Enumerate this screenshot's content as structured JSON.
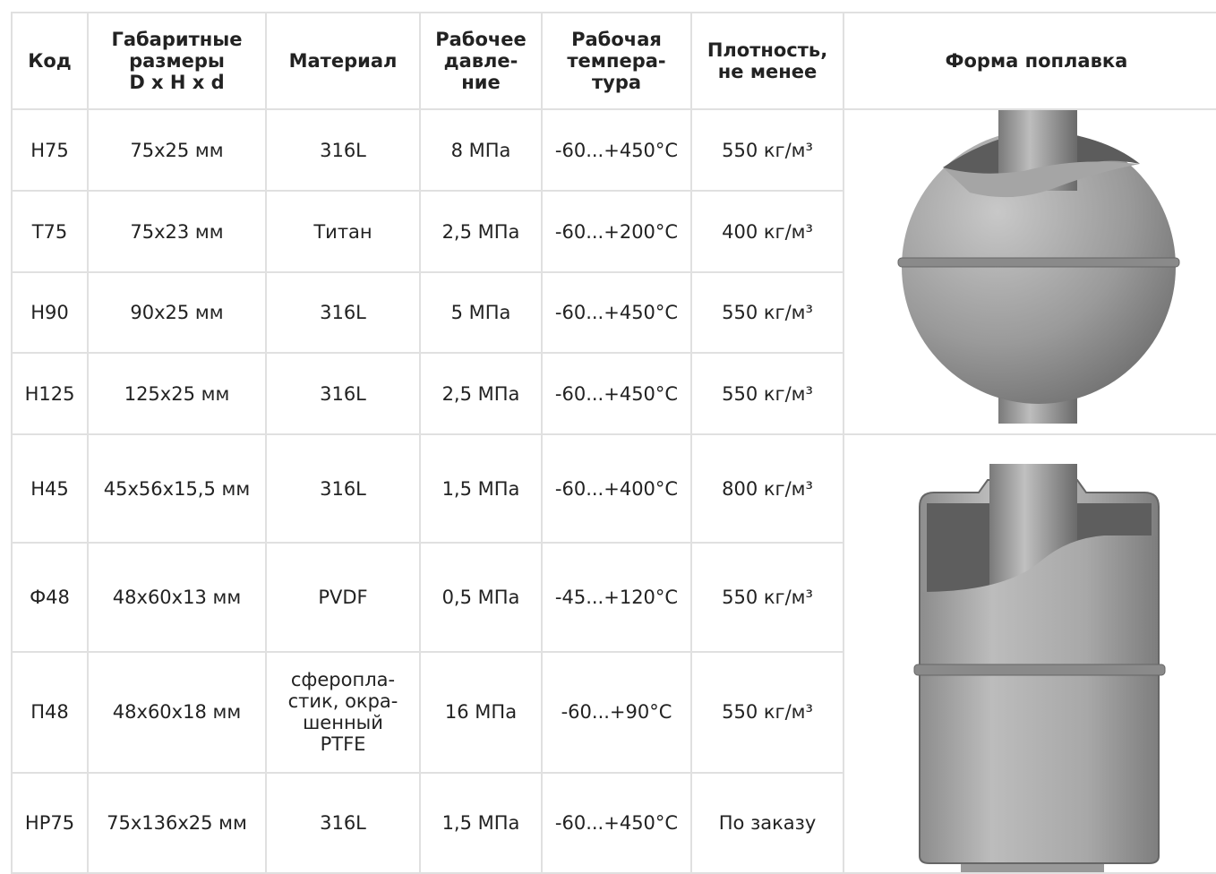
{
  "table": {
    "header": [
      "Код",
      "Габаритные\nразмеры\nD x H x d",
      "Материал",
      "Рабочее\nдавле-\nние",
      "Рабочая\nтемпера-\nтура",
      "Плотность,\nне менее",
      "Форма поплавка"
    ],
    "rows": [
      [
        "Н75",
        "75х25 мм",
        "316L",
        "8 МПа",
        "-60...+450°С",
        "550 кг/м³"
      ],
      [
        "Т75",
        "75х23 мм",
        "Титан",
        "2,5 МПа",
        "-60...+200°С",
        "400 кг/м³"
      ],
      [
        "Н90",
        "90х25 мм",
        "316L",
        "5 МПа",
        "-60...+450°С",
        "550 кг/м³"
      ],
      [
        "Н125",
        "125х25 мм",
        "316L",
        "2,5 МПа",
        "-60...+450°С",
        "550 кг/м³"
      ],
      [
        "Н45",
        "45х56х15,5 мм",
        "316L",
        "1,5 МПа",
        "-60...+400°С",
        "800 кг/м³"
      ],
      [
        "Ф48",
        "48х60х13 мм",
        "PVDF",
        "0,5 МПа",
        "-45...+120°С",
        "550 кг/м³"
      ],
      [
        "П48",
        "48х60х18 мм",
        "сферопла-\nстик, окра-\nшенный\nPTFE",
        "16 МПа",
        "-60...+90°С",
        "550 кг/м³"
      ],
      [
        "НР75",
        "75х136х25 мм",
        "316L",
        "1,5 МПа",
        "-60...+450°С",
        "По заказу"
      ]
    ]
  }
}
